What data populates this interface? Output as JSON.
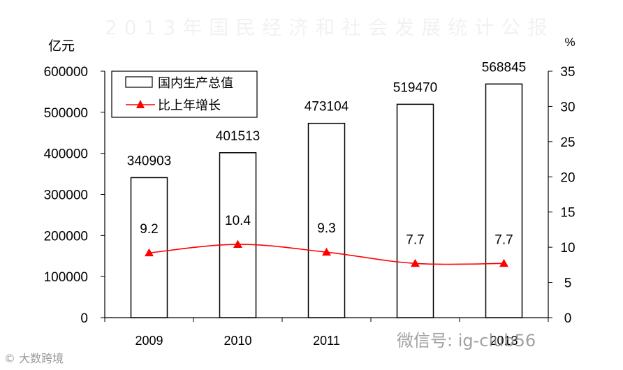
{
  "chart_data": {
    "type": "bar",
    "categories": [
      "2009",
      "2010",
      "2011",
      "",
      "2013"
    ],
    "series": [
      {
        "name": "国内生产总值",
        "type": "bar",
        "axis": "left",
        "values": [
          340903,
          401513,
          473104,
          519470,
          568845
        ],
        "labels": [
          "340903",
          "401513",
          "473104",
          "519470",
          "568845"
        ]
      },
      {
        "name": "比上年增长",
        "type": "line",
        "axis": "right",
        "values": [
          9.2,
          10.4,
          9.3,
          7.7,
          7.7
        ],
        "labels": [
          "9.2",
          "10.4",
          "9.3",
          "7.7",
          "7.7"
        ]
      }
    ],
    "ylabel": "亿元",
    "y2label": "%",
    "ylim": [
      0,
      600000
    ],
    "y2lim": [
      0,
      35
    ],
    "yticks": [
      "0",
      "100000",
      "200000",
      "300000",
      "400000",
      "500000",
      "600000"
    ],
    "y2ticks": [
      "0",
      "5",
      "10",
      "15",
      "20",
      "25",
      "30",
      "35"
    ],
    "legend_position": "top-left",
    "grid": false,
    "colors": {
      "bar_fill": "#ffffff",
      "bar_stroke": "#000000",
      "line": "#ff0000"
    }
  },
  "overlay": {
    "faded_title": "2013年国民经济和社会发展统计公报",
    "watermark_left": "© 大数跨境",
    "watermark_right": "微信号: ig-club56"
  }
}
